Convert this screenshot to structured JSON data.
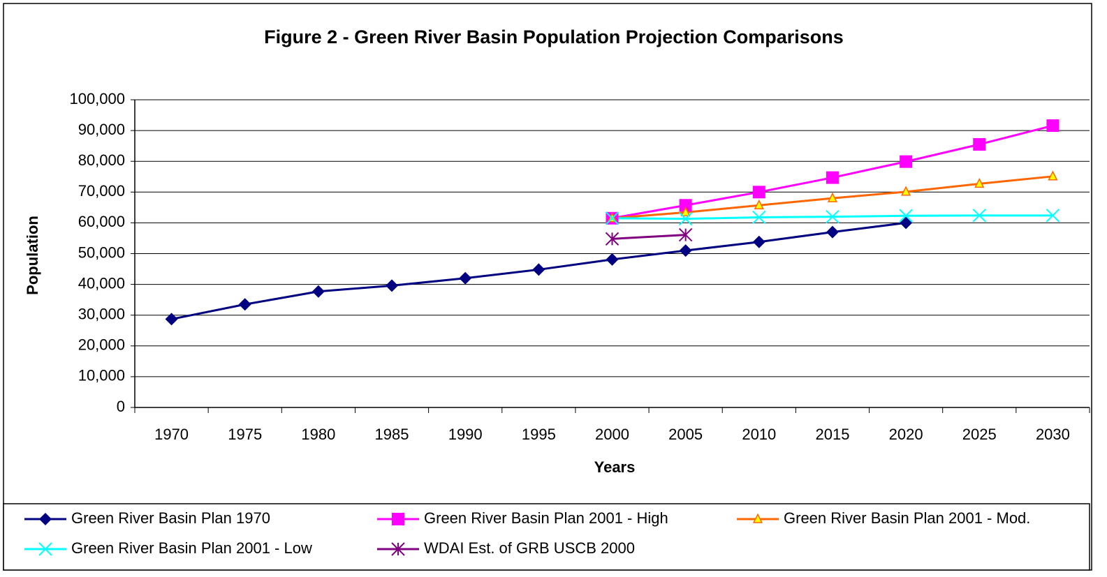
{
  "chart_data": {
    "type": "line",
    "title": "Figure 2 - Green River Basin Population Projection Comparisons",
    "xlabel": "Years",
    "ylabel": "Population",
    "categories": [
      "1970",
      "1975",
      "1980",
      "1985",
      "1990",
      "1995",
      "2000",
      "2005",
      "2010",
      "2015",
      "2020",
      "2025",
      "2030"
    ],
    "ylim": [
      0,
      100000
    ],
    "yticks": [
      0,
      {
        "value": 10000,
        "label": "10,000"
      },
      {
        "value": 20000,
        "label": "20,000"
      },
      {
        "value": 30000,
        "label": "30,000"
      },
      {
        "value": 40000,
        "label": "40,000"
      },
      {
        "value": 50000,
        "label": "50,000"
      },
      {
        "value": 60000,
        "label": "60,000"
      },
      {
        "value": 70000,
        "label": "70,000"
      },
      {
        "value": 80000,
        "label": "80,000"
      },
      {
        "value": 90000,
        "label": "90,000"
      },
      {
        "value": 100000,
        "label": "100,000"
      }
    ],
    "grid": true,
    "legend": "bottom",
    "series": [
      {
        "name": "Green River Basin Plan 1970",
        "color": "#000080",
        "marker": "diamond",
        "values": [
          28700,
          33500,
          37700,
          39600,
          42000,
          44800,
          48100,
          51000,
          53800,
          57000,
          60000,
          null,
          null
        ]
      },
      {
        "name": "Green River Basin Plan 2001 - High",
        "color": "#FF00FF",
        "marker": "square",
        "values": [
          null,
          null,
          null,
          null,
          null,
          null,
          61500,
          65700,
          70000,
          74700,
          79900,
          85500,
          91600
        ]
      },
      {
        "name": "Green River Basin Plan 2001 - Mod.",
        "color": "#FF6600",
        "marker": "triangle",
        "values": [
          null,
          null,
          null,
          null,
          null,
          null,
          61500,
          63400,
          65700,
          68000,
          70100,
          72700,
          75100
        ]
      },
      {
        "name": "Green River Basin Plan 2001 - Low",
        "color": "#00FFFF",
        "marker": "x",
        "values": [
          null,
          null,
          null,
          null,
          null,
          null,
          61500,
          61300,
          61800,
          62000,
          62300,
          62400,
          62400
        ]
      },
      {
        "name": "WDAI Est. of GRB USCB 2000",
        "color": "#800080",
        "marker": "asterisk",
        "values": [
          null,
          null,
          null,
          null,
          null,
          null,
          54800,
          56100,
          null,
          null,
          null,
          null,
          null
        ]
      }
    ]
  }
}
